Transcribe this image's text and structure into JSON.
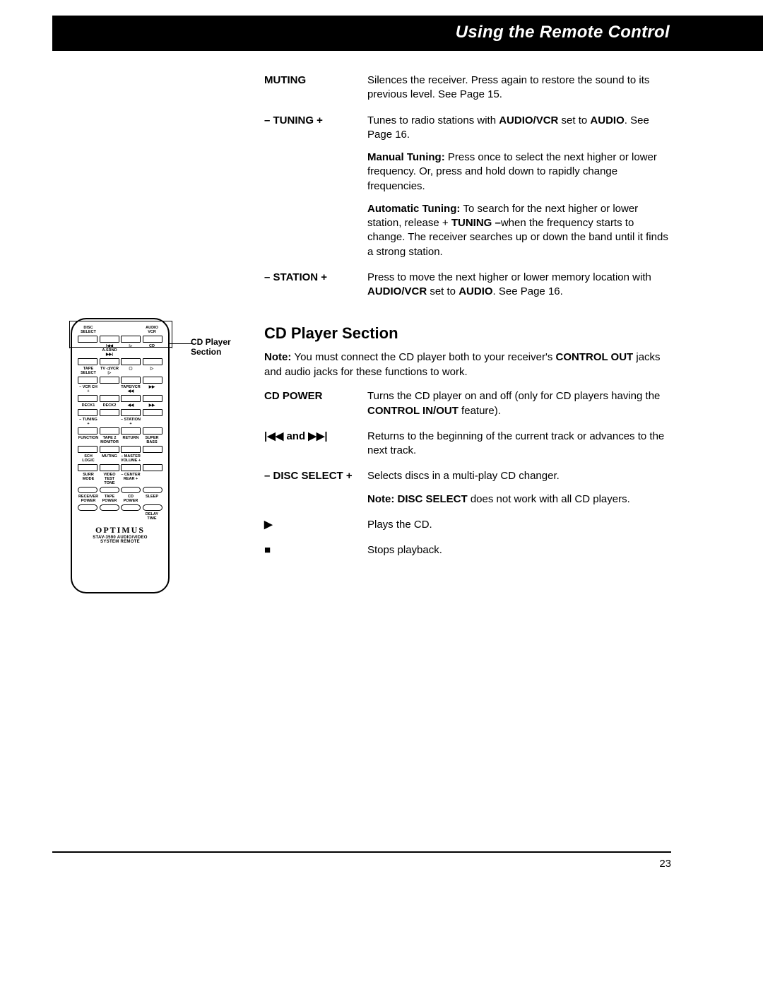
{
  "header": {
    "title": "Using the Remote Control"
  },
  "receiver_rows": [
    {
      "label": "MUTING",
      "paras": [
        {
          "runs": [
            {
              "t": "Silences the receiver. Press again to restore the sound to its previous level. See Page 15."
            }
          ]
        }
      ]
    },
    {
      "label": "– TUNING +",
      "paras": [
        {
          "runs": [
            {
              "t": "Tunes to radio stations with "
            },
            {
              "t": "AUDIO/VCR",
              "b": true
            },
            {
              "t": " set to "
            },
            {
              "t": "AUDIO",
              "b": true
            },
            {
              "t": ". See Page 16."
            }
          ]
        },
        {
          "runs": [
            {
              "t": "Manual Tuning: ",
              "b": true
            },
            {
              "t": "Press once to select the next higher or lower frequency. Or, press and hold down to rapidly change frequencies."
            }
          ]
        },
        {
          "runs": [
            {
              "t": "Automatic Tuning: ",
              "b": true
            },
            {
              "t": "To search for the next higher or lower station, release + "
            },
            {
              "t": "TUNING –",
              "b": true
            },
            {
              "t": "when the frequency starts to change. The receiver searches up or down the band until it finds a strong station."
            }
          ]
        }
      ]
    },
    {
      "label": "– STATION +",
      "paras": [
        {
          "runs": [
            {
              "t": "Press to move the next higher or lower memory location with "
            },
            {
              "t": "AUDIO/VCR",
              "b": true
            },
            {
              "t": " set to "
            },
            {
              "t": "AUDIO",
              "b": true
            },
            {
              "t": ". See Page 16."
            }
          ]
        }
      ]
    }
  ],
  "cd_section": {
    "title": "CD Player Section",
    "note_runs": [
      {
        "t": "Note: ",
        "b": true
      },
      {
        "t": "You must connect the CD player both to your receiver's "
      },
      {
        "t": "CONTROL OUT",
        "b": true
      },
      {
        "t": " jacks and audio jacks for these functions to work."
      }
    ],
    "rows": [
      {
        "label": "CD POWER",
        "label_html": "CD POWER",
        "paras": [
          {
            "runs": [
              {
                "t": "Turns the CD player on and off (only for CD players having the "
              },
              {
                "t": "CONTROL IN/OUT",
                "b": true
              },
              {
                "t": " feature)."
              }
            ]
          }
        ]
      },
      {
        "label_html": "<span class='sym'>|◀◀</span> and <span class='sym'>▶▶|</span>",
        "paras": [
          {
            "runs": [
              {
                "t": "Returns to the beginning of the current track or advances to the next track."
              }
            ]
          }
        ]
      },
      {
        "label": "– DISC SELECT +",
        "label_html": "– DISC SELECT +",
        "paras": [
          {
            "runs": [
              {
                "t": "Selects discs in a multi-play CD changer."
              }
            ]
          },
          {
            "runs": [
              {
                "t": "Note: DISC SELECT ",
                "b": true
              },
              {
                "t": "does not work with all CD players."
              }
            ]
          }
        ]
      },
      {
        "label_html": "<span class='sym'>▶</span>",
        "paras": [
          {
            "runs": [
              {
                "t": "Plays the CD."
              }
            ]
          }
        ]
      },
      {
        "label_html": "<span class='sym'>■</span>",
        "paras": [
          {
            "runs": [
              {
                "t": "Stops playback."
              }
            ]
          }
        ]
      }
    ]
  },
  "remote": {
    "callout_label": "CD Player Section",
    "brand": "OPTIMUS",
    "sub1": "STAV-3590 AUDIO/VIDEO",
    "sub2": "SYSTEM REMOTE",
    "row_labels": [
      [
        "DISC SELECT",
        "",
        "",
        "AUDIO VCR"
      ],
      [
        "",
        "|◀◀ A.SRND ▶▶|",
        "▷",
        "CD"
      ],
      [
        "TAPE SELECT",
        "TV ◁/VCR ▷",
        "▢",
        "▷"
      ],
      [
        "– VCR CH +",
        "",
        "TAPE/VCR ◀◀",
        "▶▶"
      ],
      [
        "DECK1",
        "DECK2",
        "◀◀",
        "▶▶"
      ],
      [
        "– TUNING +",
        "",
        "– STATION +",
        ""
      ],
      [
        "FUNCTION",
        "TAPE 2 MONITOR",
        "RETURN",
        "SUPER BASS"
      ],
      [
        "SCH LOGIC",
        "MUTING",
        "– MASTER VOLUME +",
        ""
      ],
      [
        "SURR MODE",
        "VIDEO TEST TONE",
        "– CENTER REAR +",
        ""
      ],
      [
        "RECEIVER POWER",
        "TAPE POWER",
        "CD POWER",
        "SLEEP"
      ],
      [
        "",
        "",
        "",
        "DELAY TIME"
      ]
    ]
  },
  "page_number": "23"
}
